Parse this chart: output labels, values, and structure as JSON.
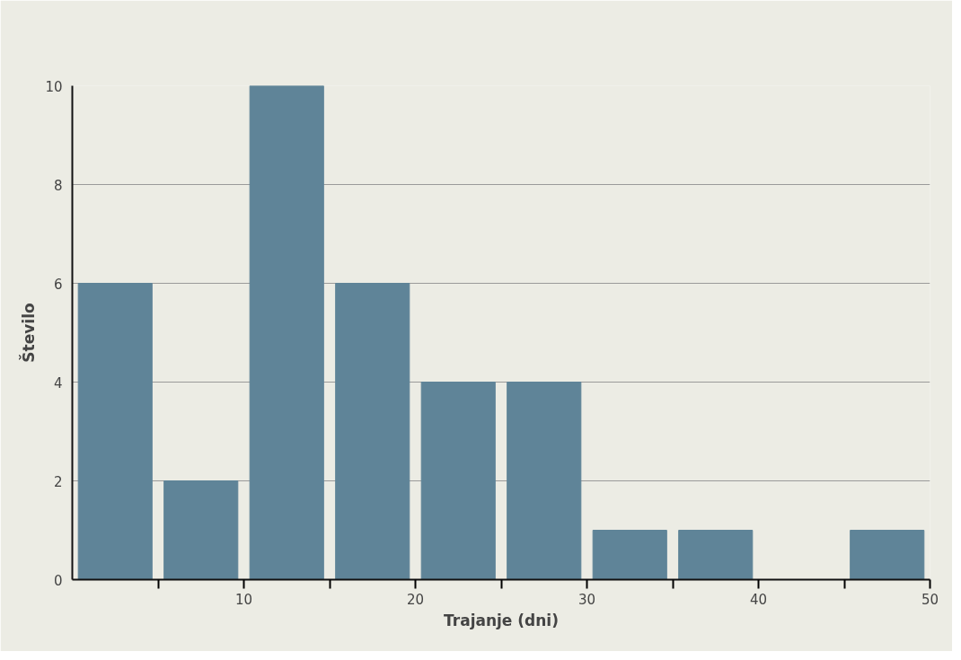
{
  "chart_data": {
    "type": "histogram",
    "xlabel": "Trajanje (dni)",
    "ylabel": "Število",
    "bins": [
      0,
      5,
      10,
      15,
      20,
      25,
      30,
      35,
      40,
      45,
      50
    ],
    "values": [
      6,
      2,
      10,
      6,
      4,
      4,
      1,
      1,
      0,
      1
    ],
    "color": "#5f8498",
    "xlim": [
      0,
      50
    ],
    "xticks": [
      {
        "value": 5,
        "label": null
      },
      10,
      {
        "value": 15,
        "label": null
      },
      20,
      {
        "value": 25,
        "label": null
      },
      30,
      {
        "value": 35,
        "label": null
      },
      40,
      {
        "value": 45,
        "label": null
      },
      50
    ],
    "ylim": [
      0,
      10
    ],
    "yticks": [
      0,
      2,
      4,
      6,
      8,
      10
    ],
    "grid": "y"
  }
}
